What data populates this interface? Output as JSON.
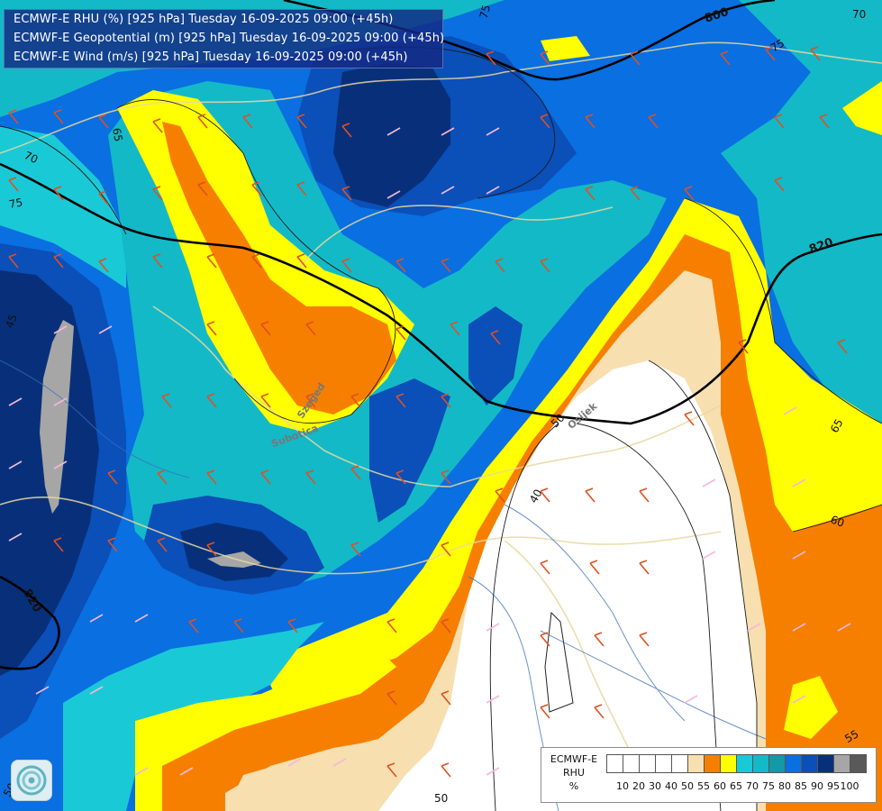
{
  "title_lines": [
    "ECMWF-E RHU (%) [925 hPa] Tuesday 16-09-2025 09:00 (+45h)",
    "ECMWF-E Geopotential (m) [925 hPa] Tuesday 16-09-2025 09:00 (+45h)",
    "ECMWF-E Wind (m/s) [925 hPa] Tuesday 16-09-2025 09:00 (+45h)"
  ],
  "legend": {
    "title_lines": [
      "ECMWF-E",
      "RHU",
      "%"
    ],
    "ticks": [
      "10",
      "20",
      "30",
      "40",
      "50",
      "55",
      "60",
      "65",
      "70",
      "75",
      "80",
      "85",
      "90",
      "95",
      "100"
    ],
    "colors": [
      "#ffffff",
      "#ffffff",
      "#ffffff",
      "#ffffff",
      "#ffffff",
      "#f7dfb0",
      "#f77f00",
      "#ffff00",
      "#1ac9d6",
      "#13b9c7",
      "#129aa7",
      "#0a6fe0",
      "#0b4fb8",
      "#08307a",
      "#a6a6a6",
      "#595959"
    ]
  },
  "rhu_colors": {
    "lt50": "#ffffff",
    "r50_55": "#f7dfb0",
    "r55_60": "#f77f00",
    "r60_65": "#ffff00",
    "r65_70": "#1ac9d6",
    "r70_75": "#13b9c7",
    "r75_80": "#129aa7",
    "r80_85": "#0a6fe0",
    "r85_90": "#0b4fb8",
    "r90_95": "#08307a",
    "r95_100": "#a6a6a6"
  },
  "contour_labels": [
    "75",
    "800",
    "75",
    "70",
    "65",
    "70",
    "75",
    "820",
    "45",
    "50",
    "40",
    "60",
    "65",
    "55",
    "50",
    "50",
    "820"
  ],
  "map_labels": [
    "Szeged",
    "Subotica",
    "Osijek"
  ]
}
